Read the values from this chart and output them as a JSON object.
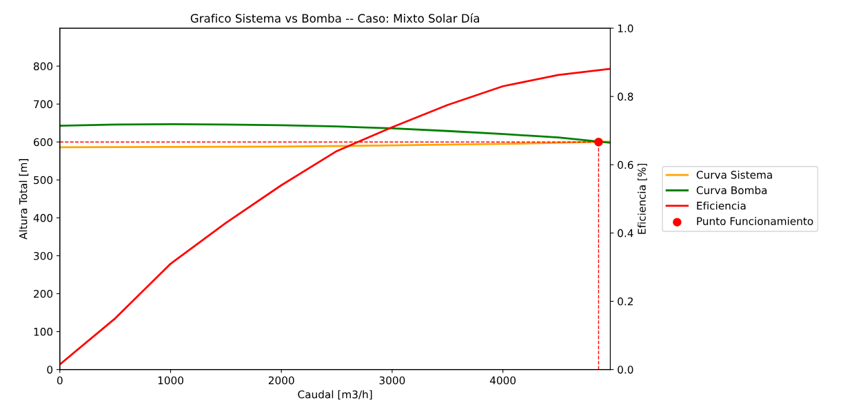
{
  "chart_data": {
    "type": "line",
    "title": "Grafico Sistema vs Bomba -- Caso: Mixto Solar Día",
    "xlabel": "Caudal [m3/h]",
    "ylabel": "Altura Total [m]",
    "y2label": "Eficiencia [%]",
    "series": [
      {
        "name": "Curva Sistema",
        "color": "#ffa500",
        "x": [
          0,
          1000,
          2000,
          3000,
          4000,
          4970
        ],
        "values": [
          586,
          587,
          588,
          591,
          595,
          601
        ]
      },
      {
        "name": "Curva Bomba",
        "color": "#008000",
        "x": [
          0,
          500,
          1000,
          1500,
          2000,
          2500,
          3000,
          3500,
          4000,
          4500,
          4970
        ],
        "values": [
          643,
          646,
          647,
          646,
          644,
          641,
          636,
          629,
          621,
          612,
          598
        ]
      },
      {
        "name": "Eficiencia",
        "color": "#ff0000",
        "axis": "y2",
        "x": [
          0,
          500,
          1000,
          1500,
          2000,
          2500,
          3000,
          3500,
          4000,
          4500,
          4970
        ],
        "values": [
          0.015,
          0.15,
          0.31,
          0.43,
          0.54,
          0.64,
          0.71,
          0.775,
          0.83,
          0.863,
          0.881
        ]
      },
      {
        "name": "Punto Funcionamiento",
        "type": "scatter",
        "color": "#ff0000",
        "marker": "circle",
        "x": [
          4864
        ],
        "values": [
          600
        ]
      }
    ],
    "ref_lines": [
      {
        "axis": "y",
        "value": 600,
        "color": "#ff0000",
        "line_style": "dashed"
      },
      {
        "axis": "x",
        "value": 4864,
        "color": "#ff0000",
        "line_style": "dashed"
      }
    ],
    "xlim": [
      0,
      4970
    ],
    "xticks": [
      0,
      1000,
      2000,
      3000,
      4000
    ],
    "ylim": [
      0,
      900
    ],
    "yticks": [
      0,
      100,
      200,
      300,
      400,
      500,
      600,
      700,
      800
    ],
    "y2lim": [
      0,
      1.0
    ],
    "y2ticks": [
      {
        "value": 0,
        "label": "0.0"
      },
      0.2,
      0.4,
      0.6,
      0.8,
      {
        "value": 1.0,
        "label": "1.0"
      }
    ],
    "grid": false,
    "legend": "right"
  }
}
